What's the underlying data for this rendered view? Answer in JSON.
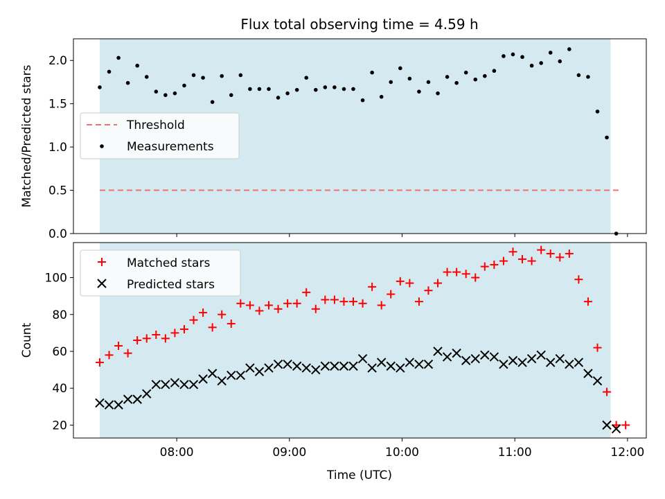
{
  "title": "Flux total observing time = 4.59 h",
  "colors": {
    "observing_span": "#d4eaf0",
    "threshold": "#f07070",
    "measurements": "#000000",
    "matched": "#ff0000",
    "predicted": "#000000"
  },
  "chart_data": [
    {
      "type": "scatter",
      "ylabel": "Matched/Predicted stars",
      "xlabel": "",
      "xlim": [
        "07:05",
        "12:10"
      ],
      "ylim": [
        0,
        2.25
      ],
      "yticks": [
        0.0,
        0.5,
        1.0,
        1.5,
        2.0
      ],
      "ytick_labels": [
        "0.0",
        "0.5",
        "1.0",
        "1.5",
        "2.0"
      ],
      "xticks": [
        "08:00",
        "09:00",
        "10:00",
        "11:00",
        "12:00"
      ],
      "observing_span": [
        "07:19",
        "11:51"
      ],
      "legend_position": "center-left",
      "legend": [
        "Threshold",
        "Measurements"
      ],
      "threshold": {
        "name": "Threshold",
        "y": 0.5,
        "x": [
          "07:19",
          "11:56"
        ]
      },
      "series": [
        {
          "name": "Measurements",
          "x": [
            "07:19",
            "07:24",
            "07:29",
            "07:34",
            "07:39",
            "07:44",
            "07:49",
            "07:54",
            "07:59",
            "08:04",
            "08:09",
            "08:14",
            "08:19",
            "08:24",
            "08:29",
            "08:34",
            "08:39",
            "08:44",
            "08:49",
            "08:54",
            "08:59",
            "09:04",
            "09:09",
            "09:14",
            "09:19",
            "09:24",
            "09:29",
            "09:34",
            "09:39",
            "09:44",
            "09:49",
            "09:54",
            "09:59",
            "10:04",
            "10:09",
            "10:14",
            "10:19",
            "10:24",
            "10:29",
            "10:34",
            "10:39",
            "10:44",
            "10:49",
            "10:54",
            "10:59",
            "11:04",
            "11:09",
            "11:14",
            "11:19",
            "11:24",
            "11:29",
            "11:34",
            "11:39",
            "11:44",
            "11:49",
            "11:54"
          ],
          "y": [
            1.69,
            1.87,
            2.03,
            1.74,
            1.94,
            1.81,
            1.64,
            1.6,
            1.62,
            1.71,
            1.83,
            1.8,
            1.52,
            1.82,
            1.6,
            1.83,
            1.67,
            1.67,
            1.67,
            1.57,
            1.62,
            1.66,
            1.8,
            1.66,
            1.69,
            1.69,
            1.67,
            1.67,
            1.54,
            1.86,
            1.58,
            1.75,
            1.91,
            1.79,
            1.64,
            1.75,
            1.62,
            1.81,
            1.74,
            1.86,
            1.78,
            1.82,
            1.88,
            2.05,
            2.07,
            2.04,
            1.94,
            1.97,
            2.09,
            1.99,
            2.13,
            1.83,
            1.81,
            1.41,
            1.11,
            0.0
          ]
        }
      ]
    },
    {
      "type": "scatter",
      "ylabel": "Count",
      "xlabel": "Time (UTC)",
      "xlim": [
        "07:05",
        "12:10"
      ],
      "ylim": [
        13,
        119
      ],
      "yticks": [
        20,
        40,
        60,
        80,
        100
      ],
      "ytick_labels": [
        "20",
        "40",
        "60",
        "80",
        "100"
      ],
      "xticks": [
        "08:00",
        "09:00",
        "10:00",
        "11:00",
        "12:00"
      ],
      "observing_span": [
        "07:19",
        "11:51"
      ],
      "legend_position": "upper-left",
      "legend": [
        "Matched stars",
        "Predicted stars"
      ],
      "series": [
        {
          "name": "Matched stars",
          "x": [
            "07:19",
            "07:24",
            "07:29",
            "07:34",
            "07:39",
            "07:44",
            "07:49",
            "07:54",
            "07:59",
            "08:04",
            "08:09",
            "08:14",
            "08:19",
            "08:24",
            "08:29",
            "08:34",
            "08:39",
            "08:44",
            "08:49",
            "08:54",
            "08:59",
            "09:04",
            "09:09",
            "09:14",
            "09:19",
            "09:24",
            "09:29",
            "09:34",
            "09:39",
            "09:44",
            "09:49",
            "09:54",
            "09:59",
            "10:04",
            "10:09",
            "10:14",
            "10:19",
            "10:24",
            "10:29",
            "10:34",
            "10:39",
            "10:44",
            "10:49",
            "10:54",
            "10:59",
            "11:04",
            "11:09",
            "11:14",
            "11:19",
            "11:24",
            "11:29",
            "11:34",
            "11:39",
            "11:44",
            "11:49",
            "11:54",
            "11:59"
          ],
          "y": [
            54,
            58,
            63,
            59,
            66,
            67,
            69,
            67,
            70,
            72,
            77,
            81,
            73,
            80,
            75,
            86,
            85,
            82,
            85,
            83,
            86,
            86,
            92,
            83,
            88,
            88,
            87,
            87,
            86,
            95,
            85,
            91,
            98,
            97,
            87,
            93,
            97,
            103,
            103,
            102,
            100,
            106,
            107,
            109,
            114,
            110,
            109,
            115,
            113,
            111,
            113,
            99,
            87,
            62,
            38,
            20,
            20
          ]
        },
        {
          "name": "Predicted stars",
          "x": [
            "07:19",
            "07:24",
            "07:29",
            "07:34",
            "07:39",
            "07:44",
            "07:49",
            "07:54",
            "07:59",
            "08:04",
            "08:09",
            "08:14",
            "08:19",
            "08:24",
            "08:29",
            "08:34",
            "08:39",
            "08:44",
            "08:49",
            "08:54",
            "08:59",
            "09:04",
            "09:09",
            "09:14",
            "09:19",
            "09:24",
            "09:29",
            "09:34",
            "09:39",
            "09:44",
            "09:49",
            "09:54",
            "09:59",
            "10:04",
            "10:09",
            "10:14",
            "10:19",
            "10:24",
            "10:29",
            "10:34",
            "10:39",
            "10:44",
            "10:49",
            "10:54",
            "10:59",
            "11:04",
            "11:09",
            "11:14",
            "11:19",
            "11:24",
            "11:29",
            "11:34",
            "11:39",
            "11:44",
            "11:49",
            "11:54"
          ],
          "y": [
            32,
            31,
            31,
            34,
            34,
            37,
            42,
            42,
            43,
            42,
            42,
            45,
            48,
            44,
            47,
            47,
            51,
            49,
            51,
            53,
            53,
            52,
            51,
            50,
            52,
            52,
            52,
            52,
            56,
            51,
            54,
            52,
            51,
            54,
            53,
            53,
            60,
            57,
            59,
            55,
            56,
            58,
            57,
            53,
            55,
            54,
            56,
            58,
            54,
            56,
            53,
            54,
            48,
            44,
            20,
            18
          ]
        }
      ]
    }
  ]
}
